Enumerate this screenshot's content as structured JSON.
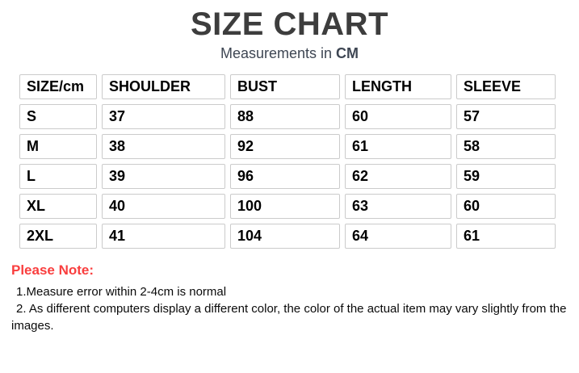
{
  "title": "SIZE CHART",
  "subtitle": {
    "prefix": "Measurements in ",
    "unit": "CM"
  },
  "table": {
    "headers": [
      "SIZE/cm",
      "SHOULDER",
      "BUST",
      "LENGTH",
      "SLEEVE"
    ],
    "rows": [
      [
        "S",
        "37",
        "88",
        "60",
        "57"
      ],
      [
        "M",
        "38",
        "92",
        "61",
        "58"
      ],
      [
        "L",
        "39",
        "96",
        "62",
        "59"
      ],
      [
        "XL",
        "40",
        "100",
        "63",
        "60"
      ],
      [
        "2XL",
        "41",
        "104",
        "64",
        "61"
      ]
    ]
  },
  "note": {
    "heading": "Please Note:",
    "items": [
      "1.Measure error within 2-4cm is normal",
      "2. As different computers display a different color, the color of the actual item may vary slightly from the images."
    ]
  },
  "colors": {
    "title_text": "#3d3d3d",
    "subtitle_text": "#3e4653",
    "note_heading": "#f93e3e",
    "cell_border": "#cbcbcb",
    "cell_text": "#000000",
    "background": "#ffffff"
  }
}
